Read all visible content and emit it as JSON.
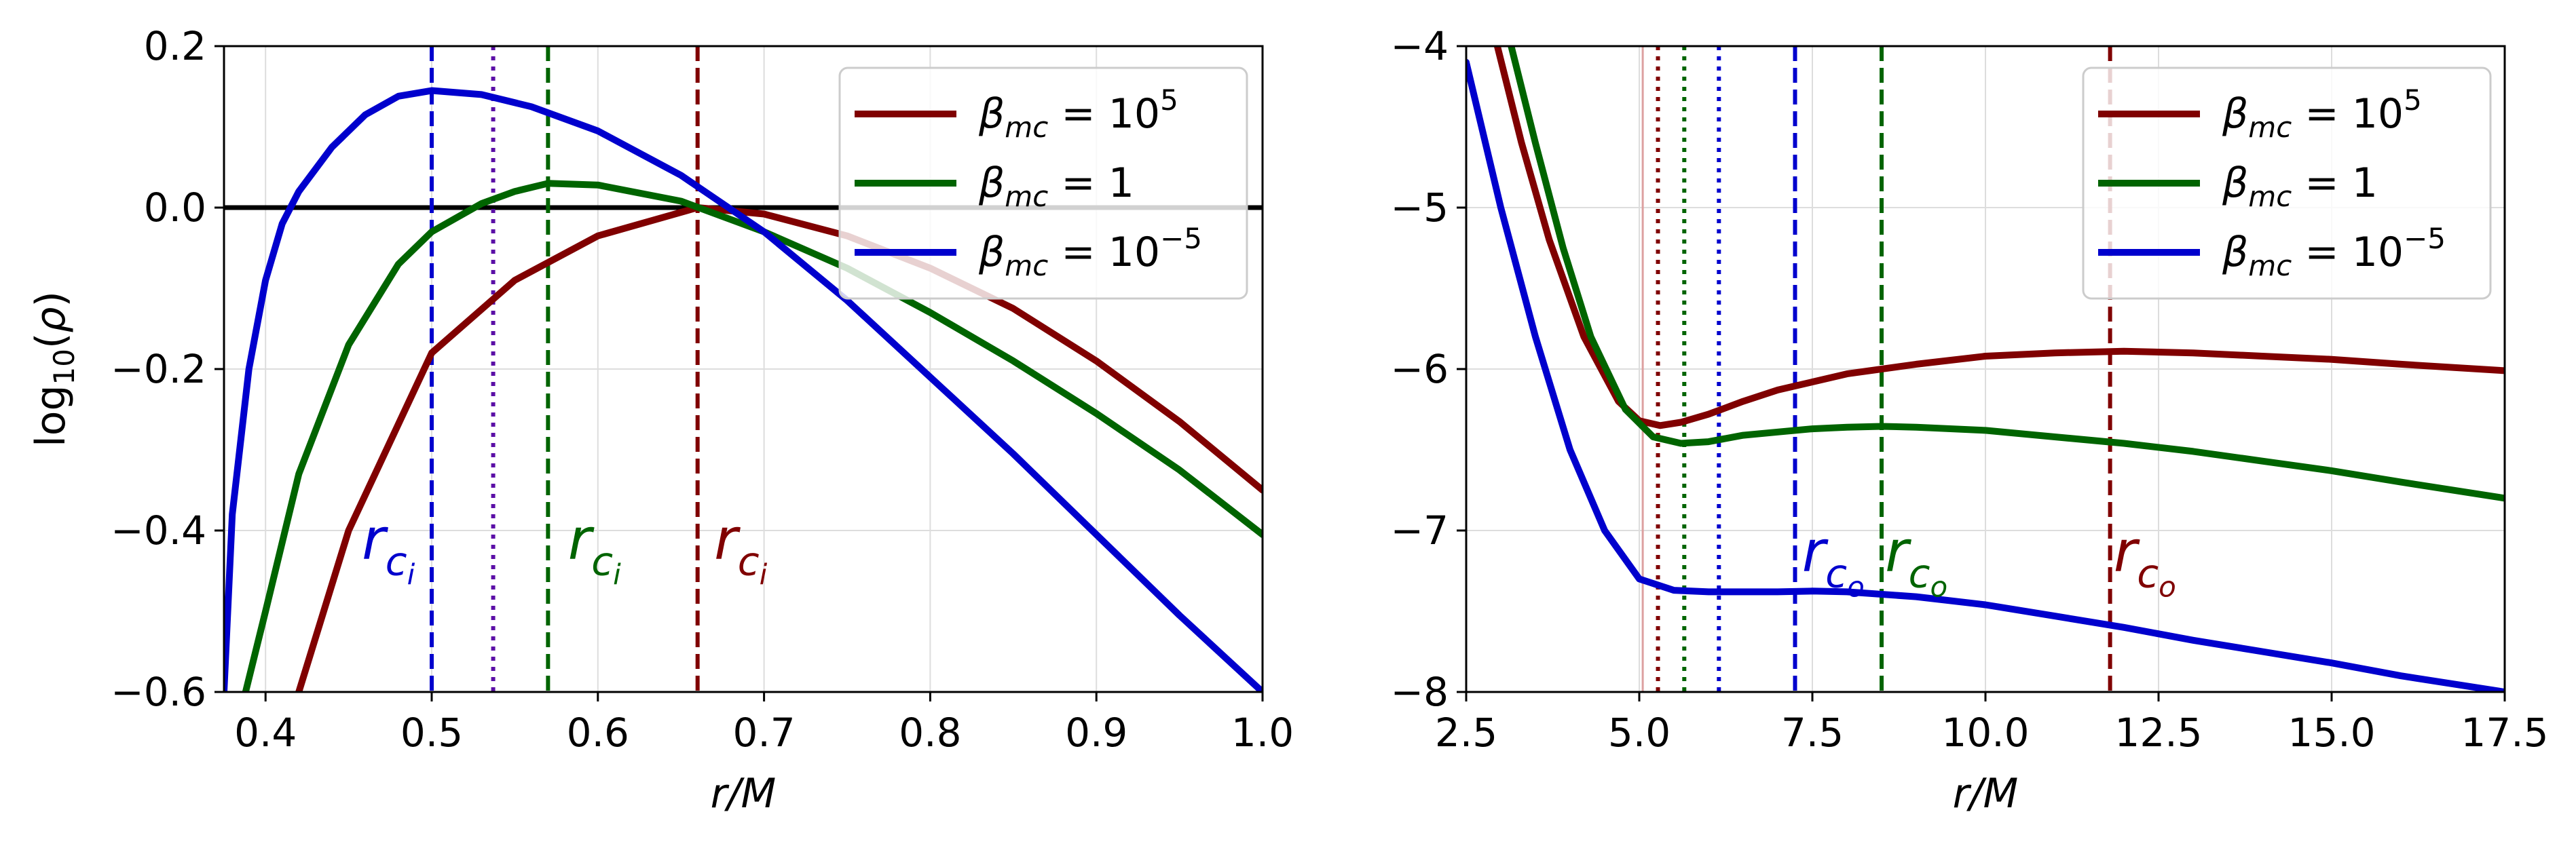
{
  "colors": {
    "dark_red": "#800000",
    "dark_green": "#006400",
    "blue": "#0000cd",
    "purple": "#5b0fa6",
    "black": "#000000",
    "grid": "#dddddd"
  },
  "chart_data": [
    {
      "type": "line",
      "xlabel": "r/M",
      "ylabel": "log10(ρ)",
      "xlim": [
        0.375,
        1.0
      ],
      "ylim": [
        -0.6,
        0.2
      ],
      "xticks": [
        0.4,
        0.5,
        0.6,
        0.7,
        0.8,
        0.9,
        1.0
      ],
      "xtick_labels": [
        "0.4",
        "0.5",
        "0.6",
        "0.7",
        "0.8",
        "0.9",
        "1.0"
      ],
      "yticks": [
        -0.6,
        -0.4,
        -0.2,
        0.0,
        0.2
      ],
      "ytick_labels": [
        "−0.6",
        "−0.4",
        "−0.2",
        "0.0",
        "0.2"
      ],
      "grid": true,
      "legend_position": "top-right",
      "hline": {
        "y": 0.0,
        "color": "#000000"
      },
      "series": [
        {
          "name": "β_mc = 10^5",
          "color": "#800000",
          "legend": {
            "base": "β",
            "sub": "mc",
            "eq": " = 10",
            "sup": "5"
          },
          "x": [
            0.42,
            0.45,
            0.5,
            0.55,
            0.6,
            0.66,
            0.7,
            0.75,
            0.8,
            0.85,
            0.9,
            0.95,
            1.0
          ],
          "y": [
            -0.6,
            -0.4,
            -0.18,
            -0.09,
            -0.035,
            0.0,
            -0.008,
            -0.035,
            -0.075,
            -0.125,
            -0.19,
            -0.265,
            -0.35
          ]
        },
        {
          "name": "β_mc = 1",
          "color": "#006400",
          "legend": {
            "base": "β",
            "sub": "mc",
            "eq": " = 1",
            "sup": ""
          },
          "x": [
            0.388,
            0.4,
            0.42,
            0.45,
            0.48,
            0.5,
            0.53,
            0.55,
            0.57,
            0.6,
            0.65,
            0.7,
            0.75,
            0.8,
            0.85,
            0.9,
            0.95,
            1.0
          ],
          "y": [
            -0.6,
            -0.5,
            -0.33,
            -0.17,
            -0.07,
            -0.03,
            0.005,
            0.02,
            0.03,
            0.028,
            0.008,
            -0.03,
            -0.075,
            -0.13,
            -0.19,
            -0.255,
            -0.325,
            -0.405
          ]
        },
        {
          "name": "β_mc = 10^-5",
          "color": "#0000cd",
          "legend": {
            "base": "β",
            "sub": "mc",
            "eq": " = 10",
            "sup": "−5"
          },
          "x": [
            0.375,
            0.38,
            0.39,
            0.4,
            0.41,
            0.42,
            0.44,
            0.46,
            0.48,
            0.5,
            0.53,
            0.56,
            0.6,
            0.65,
            0.7,
            0.75,
            0.8,
            0.85,
            0.9,
            0.95,
            1.0
          ],
          "y": [
            -0.6,
            -0.38,
            -0.2,
            -0.09,
            -0.02,
            0.02,
            0.075,
            0.115,
            0.138,
            0.145,
            0.14,
            0.125,
            0.095,
            0.04,
            -0.03,
            -0.115,
            -0.21,
            -0.305,
            -0.405,
            -0.505,
            -0.6
          ]
        }
      ],
      "vlines": [
        {
          "x": 0.5,
          "color": "#0000cd",
          "style": "dashed"
        },
        {
          "x": 0.537,
          "color": "#5b0fa6",
          "style": "dotted"
        },
        {
          "x": 0.57,
          "color": "#006400",
          "style": "dashed"
        },
        {
          "x": 0.66,
          "color": "#800000",
          "style": "dashed"
        }
      ],
      "annotations": [
        {
          "base": "r",
          "sub": "c",
          "subsub": "i",
          "x": 0.458,
          "y": -0.435,
          "color": "#0000cd"
        },
        {
          "base": "r",
          "sub": "c",
          "subsub": "i",
          "x": 0.582,
          "y": -0.435,
          "color": "#006400"
        },
        {
          "base": "r",
          "sub": "c",
          "subsub": "i",
          "x": 0.67,
          "y": -0.435,
          "color": "#800000"
        }
      ]
    },
    {
      "type": "line",
      "xlabel": "r/M",
      "ylabel": "",
      "xlim": [
        2.5,
        17.5
      ],
      "ylim": [
        -8,
        -4
      ],
      "xticks": [
        2.5,
        5.0,
        7.5,
        10.0,
        12.5,
        15.0,
        17.5
      ],
      "xtick_labels": [
        "2.5",
        "5.0",
        "7.5",
        "10.0",
        "12.5",
        "15.0",
        "17.5"
      ],
      "yticks": [
        -8,
        -7,
        -6,
        -5,
        -4
      ],
      "ytick_labels": [
        "−8",
        "−7",
        "−6",
        "−5",
        "−4"
      ],
      "grid": true,
      "legend_position": "top-right",
      "series": [
        {
          "name": "β_mc = 10^5",
          "color": "#800000",
          "legend": {
            "base": "β",
            "sub": "mc",
            "eq": " = 10",
            "sup": "5"
          },
          "x": [
            2.95,
            3.3,
            3.7,
            4.2,
            4.7,
            5.0,
            5.3,
            5.6,
            6.0,
            6.5,
            7.0,
            7.5,
            8.0,
            9.0,
            10.0,
            11.0,
            12.0,
            13.0,
            14.0,
            15.0,
            16.0,
            17.5
          ],
          "y": [
            -4.0,
            -4.6,
            -5.2,
            -5.8,
            -6.2,
            -6.32,
            -6.35,
            -6.33,
            -6.28,
            -6.2,
            -6.13,
            -6.08,
            -6.03,
            -5.97,
            -5.92,
            -5.9,
            -5.89,
            -5.9,
            -5.92,
            -5.94,
            -5.97,
            -6.01
          ]
        },
        {
          "name": "β_mc = 1",
          "color": "#006400",
          "legend": {
            "base": "β",
            "sub": "mc",
            "eq": " = 1",
            "sup": ""
          },
          "x": [
            3.15,
            3.5,
            3.9,
            4.3,
            4.8,
            5.2,
            5.6,
            6.0,
            6.5,
            7.0,
            7.5,
            8.0,
            8.5,
            9.0,
            10.0,
            11.0,
            12.0,
            13.0,
            14.0,
            15.0,
            16.0,
            17.5
          ],
          "y": [
            -4.0,
            -4.6,
            -5.25,
            -5.8,
            -6.25,
            -6.42,
            -6.46,
            -6.45,
            -6.41,
            -6.39,
            -6.37,
            -6.36,
            -6.355,
            -6.36,
            -6.38,
            -6.42,
            -6.46,
            -6.51,
            -6.57,
            -6.63,
            -6.7,
            -6.8
          ]
        },
        {
          "name": "β_mc = 10^-5",
          "color": "#0000cd",
          "legend": {
            "base": "β",
            "sub": "mc",
            "eq": " = 10",
            "sup": "−5"
          },
          "x": [
            2.5,
            3.0,
            3.5,
            4.0,
            4.5,
            5.0,
            5.5,
            6.0,
            6.5,
            7.0,
            7.5,
            8.0,
            9.0,
            10.0,
            11.0,
            12.0,
            13.0,
            14.0,
            15.0,
            16.0,
            17.5
          ],
          "y": [
            -4.1,
            -5.0,
            -5.8,
            -6.5,
            -7.0,
            -7.3,
            -7.37,
            -7.38,
            -7.38,
            -7.38,
            -7.375,
            -7.38,
            -7.41,
            -7.46,
            -7.53,
            -7.6,
            -7.68,
            -7.75,
            -7.82,
            -7.9,
            -8.0
          ]
        }
      ],
      "vlines": [
        {
          "x": 5.05,
          "color": "#dda0a0",
          "style": "solid"
        },
        {
          "x": 5.27,
          "color": "#800000",
          "style": "dotted"
        },
        {
          "x": 5.65,
          "color": "#006400",
          "style": "dotted"
        },
        {
          "x": 6.15,
          "color": "#0000cd",
          "style": "dotted"
        },
        {
          "x": 7.25,
          "color": "#0000cd",
          "style": "dashed"
        },
        {
          "x": 8.5,
          "color": "#006400",
          "style": "dashed"
        },
        {
          "x": 11.8,
          "color": "#800000",
          "style": "dashed"
        }
      ],
      "annotations": [
        {
          "base": "r",
          "sub": "c",
          "subsub": "o",
          "x": 7.35,
          "y": -7.25,
          "color": "#0000cd"
        },
        {
          "base": "r",
          "sub": "c",
          "subsub": "o",
          "x": 8.55,
          "y": -7.25,
          "color": "#006400"
        },
        {
          "base": "r",
          "sub": "c",
          "subsub": "o",
          "x": 11.85,
          "y": -7.25,
          "color": "#800000"
        }
      ]
    }
  ]
}
